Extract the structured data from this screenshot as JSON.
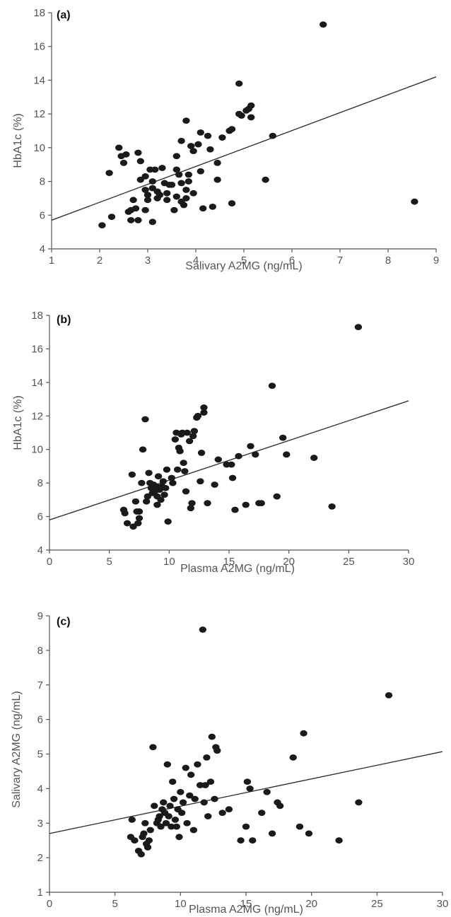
{
  "chart_data": [
    {
      "panel_label": "(a)",
      "type": "scatter",
      "xlabel": "Salivary A2MG (ng/mL)",
      "ylabel": "HbA1c (%)",
      "xlim": [
        1,
        9
      ],
      "ylim": [
        4,
        18
      ],
      "xticks": [
        "1",
        "2",
        "3",
        "4",
        "5",
        "6",
        "7",
        "8",
        "9"
      ],
      "yticks": [
        "4",
        "6",
        "8",
        "10",
        "12",
        "14",
        "16",
        "18"
      ],
      "trendline": {
        "x": [
          1,
          9
        ],
        "y": [
          5.7,
          14.2
        ]
      },
      "points": [
        [
          2.05,
          5.4
        ],
        [
          2.25,
          5.9
        ],
        [
          2.2,
          8.5
        ],
        [
          2.4,
          10.0
        ],
        [
          2.45,
          9.5
        ],
        [
          2.5,
          9.1
        ],
        [
          2.55,
          9.6
        ],
        [
          2.6,
          6.2
        ],
        [
          2.65,
          6.3
        ],
        [
          2.7,
          6.9
        ],
        [
          2.75,
          6.4
        ],
        [
          2.65,
          5.7
        ],
        [
          2.8,
          5.7
        ],
        [
          2.8,
          9.7
        ],
        [
          2.85,
          9.2
        ],
        [
          2.85,
          8.1
        ],
        [
          2.95,
          8.3
        ],
        [
          2.95,
          7.5
        ],
        [
          3.0,
          7.2
        ],
        [
          3.0,
          6.9
        ],
        [
          2.95,
          6.3
        ],
        [
          3.05,
          8.7
        ],
        [
          3.1,
          8.0
        ],
        [
          3.1,
          7.6
        ],
        [
          3.15,
          8.7
        ],
        [
          3.2,
          7.4
        ],
        [
          3.2,
          7.0
        ],
        [
          3.1,
          5.6
        ],
        [
          3.25,
          7.2
        ],
        [
          3.3,
          8.8
        ],
        [
          3.35,
          7.9
        ],
        [
          3.4,
          7.3
        ],
        [
          3.4,
          6.9
        ],
        [
          3.45,
          7.8
        ],
        [
          3.5,
          7.8
        ],
        [
          3.55,
          6.3
        ],
        [
          3.6,
          7.1
        ],
        [
          3.6,
          8.7
        ],
        [
          3.65,
          8.4
        ],
        [
          3.7,
          7.9
        ],
        [
          3.6,
          9.5
        ],
        [
          3.7,
          6.8
        ],
        [
          3.75,
          6.6
        ],
        [
          3.8,
          7.5
        ],
        [
          3.85,
          8.0
        ],
        [
          3.8,
          7.0
        ],
        [
          3.7,
          10.4
        ],
        [
          3.8,
          11.6
        ],
        [
          3.85,
          8.4
        ],
        [
          3.9,
          10.1
        ],
        [
          3.95,
          9.8
        ],
        [
          3.95,
          7.3
        ],
        [
          4.05,
          10.2
        ],
        [
          4.1,
          8.6
        ],
        [
          4.1,
          10.9
        ],
        [
          4.15,
          6.4
        ],
        [
          4.25,
          10.7
        ],
        [
          4.3,
          9.9
        ],
        [
          4.35,
          6.5
        ],
        [
          4.45,
          8.1
        ],
        [
          4.45,
          9.1
        ],
        [
          4.55,
          10.6
        ],
        [
          4.7,
          11.0
        ],
        [
          4.75,
          11.1
        ],
        [
          4.75,
          6.7
        ],
        [
          4.9,
          13.8
        ],
        [
          4.9,
          12.0
        ],
        [
          4.95,
          11.9
        ],
        [
          5.05,
          12.2
        ],
        [
          5.1,
          12.3
        ],
        [
          5.15,
          12.5
        ],
        [
          5.15,
          11.8
        ],
        [
          5.45,
          8.1
        ],
        [
          5.6,
          10.7
        ],
        [
          6.65,
          17.3
        ],
        [
          8.55,
          6.8
        ]
      ]
    },
    {
      "panel_label": "(b)",
      "type": "scatter",
      "xlabel": "Plasma A2MG (ng/mL)",
      "ylabel": "HbA1c (%)",
      "xlim": [
        0,
        30
      ],
      "ylim": [
        4,
        18
      ],
      "xticks": [
        "0",
        "5",
        "10",
        "15",
        "20",
        "25",
        "30"
      ],
      "yticks": [
        "4",
        "6",
        "8",
        "10",
        "12",
        "14",
        "16",
        "18"
      ],
      "trendline": {
        "x": [
          0,
          30
        ],
        "y": [
          5.8,
          12.9
        ]
      },
      "points": [
        [
          6.2,
          6.4
        ],
        [
          6.3,
          6.2
        ],
        [
          6.5,
          5.6
        ],
        [
          6.9,
          8.5
        ],
        [
          7.0,
          5.4
        ],
        [
          7.2,
          6.9
        ],
        [
          7.3,
          6.3
        ],
        [
          7.4,
          5.6
        ],
        [
          7.5,
          5.9
        ],
        [
          7.5,
          6.3
        ],
        [
          7.7,
          8.0
        ],
        [
          7.8,
          10.0
        ],
        [
          8.0,
          11.8
        ],
        [
          8.1,
          6.9
        ],
        [
          8.2,
          7.2
        ],
        [
          8.3,
          8.6
        ],
        [
          8.4,
          8.0
        ],
        [
          8.5,
          7.7
        ],
        [
          8.6,
          7.4
        ],
        [
          8.7,
          7.9
        ],
        [
          8.8,
          7.5
        ],
        [
          8.9,
          7.8
        ],
        [
          9.0,
          7.2
        ],
        [
          9.0,
          6.7
        ],
        [
          9.1,
          8.4
        ],
        [
          9.2,
          7.6
        ],
        [
          9.3,
          7.0
        ],
        [
          9.4,
          7.8
        ],
        [
          9.5,
          8.1
        ],
        [
          9.6,
          7.3
        ],
        [
          9.7,
          7.7
        ],
        [
          9.8,
          8.8
        ],
        [
          9.9,
          5.7
        ],
        [
          10.2,
          8.3
        ],
        [
          10.3,
          8.0
        ],
        [
          10.5,
          10.6
        ],
        [
          10.6,
          11.0
        ],
        [
          10.7,
          8.8
        ],
        [
          10.8,
          10.1
        ],
        [
          10.9,
          9.9
        ],
        [
          11.0,
          10.9
        ],
        [
          11.1,
          11.0
        ],
        [
          11.2,
          9.2
        ],
        [
          11.3,
          8.7
        ],
        [
          11.4,
          7.5
        ],
        [
          11.5,
          11.0
        ],
        [
          11.7,
          10.5
        ],
        [
          11.8,
          6.5
        ],
        [
          11.9,
          6.8
        ],
        [
          12.0,
          10.8
        ],
        [
          12.1,
          11.1
        ],
        [
          12.3,
          11.9
        ],
        [
          12.4,
          12.0
        ],
        [
          12.6,
          8.1
        ],
        [
          12.7,
          9.8
        ],
        [
          12.9,
          12.5
        ],
        [
          12.9,
          12.2
        ],
        [
          13.2,
          6.8
        ],
        [
          13.8,
          7.9
        ],
        [
          14.1,
          9.4
        ],
        [
          14.8,
          9.1
        ],
        [
          15.2,
          9.1
        ],
        [
          15.3,
          8.3
        ],
        [
          15.5,
          6.4
        ],
        [
          15.8,
          9.6
        ],
        [
          16.4,
          6.7
        ],
        [
          16.8,
          10.2
        ],
        [
          17.2,
          9.7
        ],
        [
          17.5,
          6.8
        ],
        [
          17.7,
          6.8
        ],
        [
          18.6,
          13.8
        ],
        [
          19.0,
          7.2
        ],
        [
          19.5,
          10.7
        ],
        [
          19.8,
          9.7
        ],
        [
          22.1,
          9.5
        ],
        [
          23.6,
          6.6
        ],
        [
          25.8,
          17.3
        ]
      ]
    },
    {
      "panel_label": "(c)",
      "type": "scatter",
      "xlabel": "Plasma A2MG (ng/mL)",
      "ylabel": "Salivary A2MG (ng/mL)",
      "xlim": [
        0,
        30
      ],
      "ylim": [
        1,
        9
      ],
      "xticks": [
        "0",
        "5",
        "10",
        "15",
        "20",
        "25",
        "30"
      ],
      "yticks": [
        "1",
        "2",
        "3",
        "4",
        "5",
        "6",
        "7",
        "8",
        "9"
      ],
      "trendline": {
        "x": [
          0,
          30
        ],
        "y": [
          2.7,
          5.07
        ]
      },
      "points": [
        [
          6.2,
          2.6
        ],
        [
          6.3,
          3.1
        ],
        [
          6.5,
          2.5
        ],
        [
          6.8,
          2.2
        ],
        [
          7.0,
          2.1
        ],
        [
          7.1,
          2.6
        ],
        [
          7.2,
          2.7
        ],
        [
          7.3,
          3.0
        ],
        [
          7.4,
          2.4
        ],
        [
          7.5,
          2.3
        ],
        [
          7.6,
          2.5
        ],
        [
          7.7,
          2.8
        ],
        [
          7.9,
          5.2
        ],
        [
          8.0,
          3.5
        ],
        [
          8.2,
          3.0
        ],
        [
          8.3,
          3.1
        ],
        [
          8.4,
          3.2
        ],
        [
          8.5,
          2.9
        ],
        [
          8.6,
          3.4
        ],
        [
          8.7,
          3.6
        ],
        [
          8.8,
          3.3
        ],
        [
          8.9,
          3.0
        ],
        [
          9.0,
          4.7
        ],
        [
          9.1,
          3.2
        ],
        [
          9.2,
          3.5
        ],
        [
          9.3,
          2.9
        ],
        [
          9.4,
          4.2
        ],
        [
          9.5,
          3.7
        ],
        [
          9.6,
          3.1
        ],
        [
          9.7,
          2.9
        ],
        [
          9.8,
          3.4
        ],
        [
          9.9,
          2.6
        ],
        [
          10.0,
          3.9
        ],
        [
          10.1,
          3.3
        ],
        [
          10.2,
          3.6
        ],
        [
          10.4,
          4.6
        ],
        [
          10.5,
          3.0
        ],
        [
          10.7,
          3.8
        ],
        [
          10.8,
          4.4
        ],
        [
          11.0,
          2.8
        ],
        [
          11.1,
          3.7
        ],
        [
          11.3,
          4.7
        ],
        [
          11.5,
          4.1
        ],
        [
          11.7,
          8.6
        ],
        [
          11.8,
          3.6
        ],
        [
          11.9,
          4.1
        ],
        [
          12.0,
          4.9
        ],
        [
          12.1,
          3.2
        ],
        [
          12.3,
          4.2
        ],
        [
          12.4,
          5.5
        ],
        [
          12.6,
          3.7
        ],
        [
          12.7,
          5.2
        ],
        [
          12.8,
          5.1
        ],
        [
          13.2,
          3.3
        ],
        [
          13.7,
          3.4
        ],
        [
          14.6,
          2.5
        ],
        [
          15.0,
          2.9
        ],
        [
          15.1,
          4.2
        ],
        [
          15.3,
          4.0
        ],
        [
          15.5,
          2.5
        ],
        [
          16.2,
          3.3
        ],
        [
          16.6,
          3.9
        ],
        [
          17.0,
          2.7
        ],
        [
          17.4,
          3.6
        ],
        [
          17.6,
          3.5
        ],
        [
          18.6,
          4.9
        ],
        [
          19.1,
          2.9
        ],
        [
          19.4,
          5.6
        ],
        [
          19.8,
          2.7
        ],
        [
          22.1,
          2.5
        ],
        [
          23.6,
          3.6
        ],
        [
          25.9,
          6.7
        ]
      ]
    }
  ]
}
